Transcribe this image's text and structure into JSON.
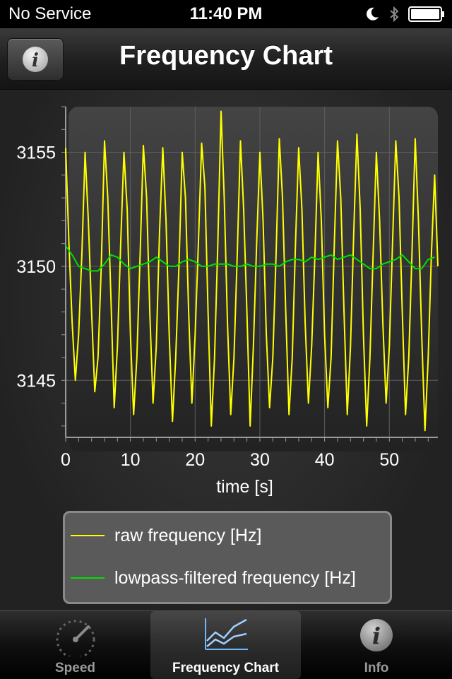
{
  "status_bar": {
    "carrier": "No Service",
    "time": "11:40 PM"
  },
  "nav": {
    "title": "Frequency Chart",
    "info_icon": "info-icon"
  },
  "tabs": [
    {
      "label": "Speed",
      "icon": "speedometer-icon",
      "selected": false
    },
    {
      "label": "Frequency Chart",
      "icon": "line-chart-icon",
      "selected": true
    },
    {
      "label": "Info",
      "icon": "info-icon",
      "selected": false
    }
  ],
  "legend": [
    {
      "label": "raw frequency [Hz]",
      "color": "#ffff00"
    },
    {
      "label": "lowpass-filtered frequency [Hz]",
      "color": "#00e000"
    }
  ],
  "chart_data": {
    "type": "line",
    "xlabel": "time [s]",
    "ylabel": "",
    "xlim": [
      0,
      57.5
    ],
    "ylim": [
      3142.5,
      3157
    ],
    "xticks": [
      0,
      10,
      20,
      30,
      40,
      50
    ],
    "yticks": [
      3145,
      3150,
      3155
    ],
    "grid": true,
    "legend_position": "bottom",
    "series": [
      {
        "name": "raw frequency [Hz]",
        "color": "#ffff00",
        "x": [
          0.0,
          0.5,
          1.0,
          1.5,
          2.0,
          2.5,
          3.0,
          3.5,
          4.0,
          4.5,
          5.0,
          5.5,
          6.0,
          6.5,
          7.0,
          7.5,
          8.0,
          8.5,
          9.0,
          9.5,
          10.0,
          10.5,
          11.0,
          11.5,
          12.0,
          12.5,
          13.0,
          13.5,
          14.0,
          14.5,
          15.0,
          15.5,
          16.0,
          16.5,
          17.0,
          17.5,
          18.0,
          18.5,
          19.0,
          19.5,
          20.0,
          20.5,
          21.0,
          21.5,
          22.0,
          22.5,
          23.0,
          23.5,
          24.0,
          24.5,
          25.0,
          25.5,
          26.0,
          26.5,
          27.0,
          27.5,
          28.0,
          28.5,
          29.0,
          29.5,
          30.0,
          30.5,
          31.0,
          31.5,
          32.0,
          32.5,
          33.0,
          33.5,
          34.0,
          34.5,
          35.0,
          35.5,
          36.0,
          36.5,
          37.0,
          37.5,
          38.0,
          38.5,
          39.0,
          39.5,
          40.0,
          40.5,
          41.0,
          41.5,
          42.0,
          42.5,
          43.0,
          43.5,
          44.0,
          44.5,
          45.0,
          45.5,
          46.0,
          46.5,
          47.0,
          47.5,
          48.0,
          48.5,
          49.0,
          49.5,
          50.0,
          50.5,
          51.0,
          51.5,
          52.0,
          52.5,
          53.0,
          53.5,
          54.0,
          54.5,
          55.0,
          55.5,
          56.0,
          56.5,
          57.0,
          57.5
        ],
        "values": [
          3155.2,
          3151.0,
          3147.5,
          3145.0,
          3147.0,
          3150.5,
          3155.0,
          3152.0,
          3148.0,
          3144.5,
          3146.0,
          3150.0,
          3155.5,
          3153.0,
          3148.5,
          3143.8,
          3146.5,
          3151.0,
          3155.0,
          3152.5,
          3147.0,
          3143.5,
          3146.0,
          3150.5,
          3155.3,
          3153.0,
          3148.0,
          3144.0,
          3146.5,
          3151.5,
          3155.2,
          3152.0,
          3147.0,
          3143.2,
          3146.0,
          3150.0,
          3155.0,
          3153.0,
          3148.0,
          3144.0,
          3147.0,
          3151.0,
          3155.4,
          3153.5,
          3148.0,
          3143.0,
          3146.0,
          3151.0,
          3156.8,
          3153.0,
          3147.5,
          3143.5,
          3146.0,
          3150.5,
          3155.5,
          3152.5,
          3148.0,
          3143.0,
          3146.5,
          3151.0,
          3155.0,
          3152.0,
          3147.0,
          3143.8,
          3146.0,
          3150.5,
          3155.6,
          3153.0,
          3148.0,
          3143.5,
          3146.0,
          3151.0,
          3155.2,
          3152.5,
          3147.5,
          3144.0,
          3146.5,
          3150.5,
          3155.0,
          3152.0,
          3147.0,
          3143.8,
          3146.0,
          3151.0,
          3155.5,
          3153.0,
          3148.0,
          3143.5,
          3146.5,
          3151.5,
          3155.8,
          3152.5,
          3147.0,
          3143.0,
          3146.0,
          3150.5,
          3155.0,
          3152.0,
          3147.5,
          3144.0,
          3146.5,
          3151.0,
          3155.5,
          3153.0,
          3148.0,
          3143.5,
          3146.0,
          3150.5,
          3155.6,
          3152.0,
          3147.0,
          3142.8,
          3146.0,
          3150.5,
          3154.0,
          3150.0
        ]
      },
      {
        "name": "lowpass-filtered frequency [Hz]",
        "color": "#00e000",
        "x": [
          0,
          1,
          2,
          3,
          4,
          5,
          6,
          7,
          8,
          9,
          10,
          11,
          12,
          13,
          14,
          15,
          16,
          17,
          18,
          19,
          20,
          21,
          22,
          23,
          24,
          25,
          26,
          27,
          28,
          29,
          30,
          31,
          32,
          33,
          34,
          35,
          36,
          37,
          38,
          39,
          40,
          41,
          42,
          43,
          44,
          45,
          46,
          47,
          48,
          49,
          50,
          51,
          52,
          53,
          54,
          55,
          56,
          57
        ],
        "values": [
          3150.9,
          3150.5,
          3150.0,
          3149.9,
          3149.8,
          3149.8,
          3150.1,
          3150.5,
          3150.4,
          3150.1,
          3149.9,
          3150.0,
          3150.1,
          3150.2,
          3150.4,
          3150.2,
          3150.0,
          3150.0,
          3150.2,
          3150.3,
          3150.2,
          3150.0,
          3150.0,
          3150.1,
          3150.1,
          3150.1,
          3150.0,
          3150.0,
          3150.1,
          3150.0,
          3150.0,
          3150.1,
          3150.1,
          3150.0,
          3150.2,
          3150.3,
          3150.3,
          3150.2,
          3150.4,
          3150.3,
          3150.4,
          3150.5,
          3150.3,
          3150.4,
          3150.5,
          3150.3,
          3150.1,
          3149.9,
          3149.9,
          3150.1,
          3150.2,
          3150.3,
          3150.5,
          3150.2,
          3149.9,
          3149.9,
          3150.3,
          3150.4
        ]
      }
    ]
  }
}
